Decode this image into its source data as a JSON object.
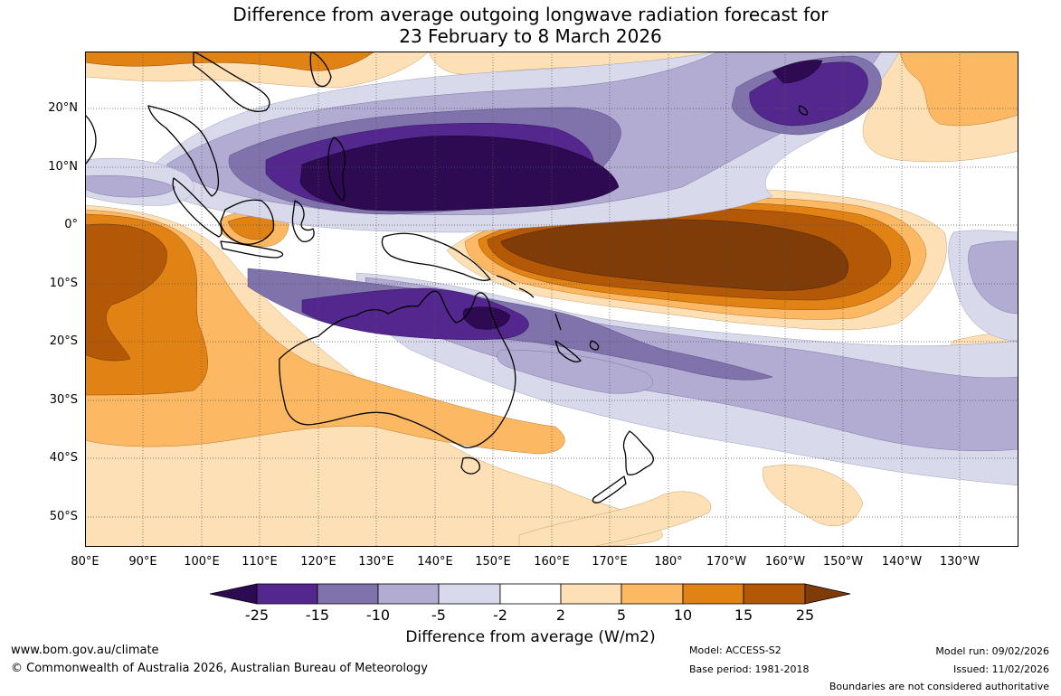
{
  "title": {
    "line1": "Difference from average outgoing longwave radiation forecast for",
    "line2": "23 February to 8 March 2026"
  },
  "map": {
    "region": "Indian Ocean to central Pacific, 80E to 125W, 30N to 55S",
    "lat_labels": [
      "20°N",
      "10°N",
      "0°",
      "10°S",
      "20°S",
      "30°S",
      "40°S",
      "50°S"
    ],
    "lon_labels": [
      "80°E",
      "90°E",
      "100°E",
      "110°E",
      "120°E",
      "130°E",
      "140°E",
      "150°E",
      "160°E",
      "170°E",
      "180°",
      "170°W",
      "160°W",
      "150°W",
      "140°W",
      "130°W"
    ]
  },
  "legend": {
    "tick_labels": [
      "-25",
      "-15",
      "-10",
      "-5",
      "-2",
      "2",
      "5",
      "10",
      "15",
      "25"
    ],
    "colors": [
      "#2d0a52",
      "#54278f",
      "#8073ac",
      "#b2abd2",
      "#d8daeb",
      "#ffffff",
      "#fee0b6",
      "#fdb863",
      "#e08214",
      "#b35806",
      "#7f3b08"
    ],
    "title": "Difference from average (W/m2)"
  },
  "footer": {
    "website": "www.bom.gov.au/climate",
    "copyright": "© Commonwealth of Australia 2026, Australian Bureau of Meteorology",
    "model": "Model: ACCESS-S2",
    "base_period": "Base period: 1981-2018",
    "model_run": "Model run: 09/02/2026",
    "issued": "Issued: 11/02/2026",
    "disclaimer": "Boundaries are not considered authoritative"
  }
}
